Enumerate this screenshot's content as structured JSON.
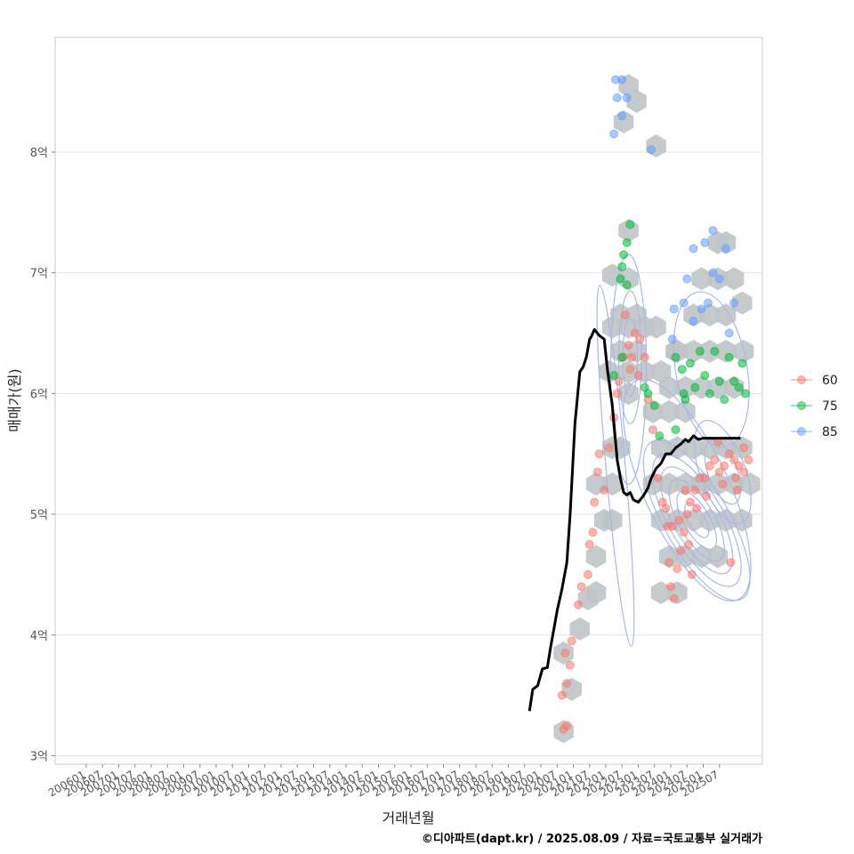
{
  "chart_data": {
    "type": "scatter",
    "xlabel": "거래년월",
    "ylabel": "매매가(원)",
    "caption": "©디아파트(dapt.kr) / 2025.08.09 / 자료=국토교통부 실거래가",
    "x_tick_labels": [
      "200601",
      "200607",
      "200701",
      "200707",
      "200801",
      "200807",
      "200901",
      "200907",
      "201001",
      "201007",
      "201101",
      "201107",
      "201201",
      "201207",
      "201301",
      "201307",
      "201401",
      "201407",
      "201501",
      "201507",
      "201601",
      "201607",
      "201701",
      "201707",
      "201801",
      "201807",
      "201901",
      "201907",
      "202001",
      "202007",
      "202101",
      "202107",
      "202201",
      "202207",
      "202301",
      "202307",
      "202401",
      "202407",
      "202501",
      "202507"
    ],
    "y_ticks": [
      3,
      4,
      5,
      6,
      7,
      8
    ],
    "y_tick_labels": [
      "3억",
      "4억",
      "5억",
      "6억",
      "7억",
      "8억"
    ],
    "ylim": [
      2.93,
      8.95
    ],
    "xlim": [
      0,
      43
    ],
    "grid": true,
    "legend_position": "right",
    "colors": {
      "60": "#F8766D",
      "75": "#00BA38",
      "85": "#619CFF",
      "hex": "#BFC4C8",
      "contour": "#A9B8E6",
      "trend": "#000000"
    },
    "legend": [
      {
        "name": "60",
        "color": "#F8766D"
      },
      {
        "name": "75",
        "color": "#00BA38"
      },
      {
        "name": "85",
        "color": "#619CFF"
      }
    ],
    "trend_line": {
      "x": [
        27.3,
        27.5,
        27.8,
        28.1,
        28.4,
        28.6,
        29.0,
        29.3,
        29.6,
        29.8,
        30.1,
        30.4,
        30.6,
        30.8,
        31.0,
        31.1,
        31.3,
        31.6,
        31.9,
        32.1,
        32.4,
        32.7,
        32.9,
        33.1,
        33.3,
        33.5,
        33.7,
        34.0,
        34.3,
        34.6,
        34.8,
        35.1,
        35.4,
        35.7,
        36.0,
        36.3,
        36.6,
        36.9,
        37.1,
        37.4,
        37.7,
        38.0,
        38.3,
        38.6,
        38.9,
        39.2,
        39.5,
        39.8,
        40.1,
        40.3
      ],
      "y": [
        3.37,
        3.55,
        3.58,
        3.72,
        3.73,
        3.9,
        4.2,
        4.38,
        4.6,
        5.0,
        5.75,
        6.18,
        6.22,
        6.3,
        6.45,
        6.47,
        6.53,
        6.48,
        6.45,
        6.2,
        5.9,
        5.45,
        5.3,
        5.18,
        5.16,
        5.18,
        5.12,
        5.1,
        5.15,
        5.22,
        5.3,
        5.38,
        5.42,
        5.5,
        5.5,
        5.55,
        5.58,
        5.62,
        5.6,
        5.65,
        5.62,
        5.63,
        5.63,
        5.63,
        5.63,
        5.63,
        5.63,
        5.63,
        5.63,
        5.63
      ]
    },
    "hexbins": [
      [
        33.4,
        8.55
      ],
      [
        33.9,
        8.42
      ],
      [
        33.1,
        8.25
      ],
      [
        35.1,
        8.05
      ],
      [
        33.4,
        7.35
      ],
      [
        32.4,
        6.98
      ],
      [
        33.4,
        6.95
      ],
      [
        32.9,
        6.65
      ],
      [
        33.9,
        6.65
      ],
      [
        32.4,
        6.55
      ],
      [
        33.4,
        6.55
      ],
      [
        34.4,
        6.55
      ],
      [
        35.1,
        6.55
      ],
      [
        32.9,
        6.35
      ],
      [
        33.9,
        6.35
      ],
      [
        32.2,
        6.18
      ],
      [
        33.4,
        6.18
      ],
      [
        34.4,
        6.18
      ],
      [
        35.4,
        6.18
      ],
      [
        36.3,
        6.35
      ],
      [
        35.9,
        6.05
      ],
      [
        36.9,
        6.05
      ],
      [
        37.9,
        6.05
      ],
      [
        38.9,
        6.05
      ],
      [
        39.9,
        6.05
      ],
      [
        40.5,
        6.35
      ],
      [
        39.4,
        6.35
      ],
      [
        38.4,
        6.35
      ],
      [
        37.4,
        6.35
      ],
      [
        36.4,
        6.35
      ],
      [
        37.4,
        6.65
      ],
      [
        38.4,
        6.65
      ],
      [
        39.4,
        6.65
      ],
      [
        38.9,
        6.95
      ],
      [
        37.9,
        6.95
      ],
      [
        38.9,
        7.25
      ],
      [
        39.4,
        7.25
      ],
      [
        40.4,
        6.75
      ],
      [
        39.9,
        6.95
      ],
      [
        33.4,
        6.0
      ],
      [
        32.4,
        5.55
      ],
      [
        32.9,
        5.55
      ],
      [
        32.4,
        5.25
      ],
      [
        31.4,
        5.25
      ],
      [
        31.9,
        4.95
      ],
      [
        31.4,
        4.65
      ],
      [
        32.4,
        4.95
      ],
      [
        31.4,
        4.35
      ],
      [
        30.9,
        4.3
      ],
      [
        30.4,
        4.05
      ],
      [
        29.4,
        3.85
      ],
      [
        29.9,
        3.55
      ],
      [
        29.4,
        3.2
      ],
      [
        34.9,
        5.25
      ],
      [
        35.4,
        5.55
      ],
      [
        35.9,
        5.25
      ],
      [
        36.4,
        5.55
      ],
      [
        36.9,
        5.25
      ],
      [
        37.4,
        5.55
      ],
      [
        37.9,
        5.25
      ],
      [
        38.4,
        5.55
      ],
      [
        38.9,
        5.25
      ],
      [
        39.4,
        5.55
      ],
      [
        39.9,
        5.25
      ],
      [
        40.4,
        5.55
      ],
      [
        40.9,
        5.25
      ],
      [
        35.4,
        4.95
      ],
      [
        36.4,
        4.95
      ],
      [
        37.4,
        4.95
      ],
      [
        38.4,
        4.95
      ],
      [
        39.4,
        4.95
      ],
      [
        40.4,
        4.95
      ],
      [
        35.9,
        4.65
      ],
      [
        36.9,
        4.65
      ],
      [
        37.9,
        4.65
      ],
      [
        38.9,
        4.65
      ],
      [
        35.4,
        4.35
      ],
      [
        36.4,
        4.35
      ],
      [
        34.9,
        5.85
      ],
      [
        35.9,
        5.85
      ],
      [
        36.9,
        5.85
      ]
    ],
    "series": [
      {
        "name": "60",
        "points": [
          [
            29.4,
            3.22
          ],
          [
            29.6,
            3.25
          ],
          [
            29.3,
            3.5
          ],
          [
            29.6,
            3.6
          ],
          [
            29.8,
            3.75
          ],
          [
            29.5,
            3.85
          ],
          [
            29.9,
            3.95
          ],
          [
            30.3,
            4.25
          ],
          [
            30.5,
            4.4
          ],
          [
            30.9,
            4.5
          ],
          [
            31.0,
            4.75
          ],
          [
            31.2,
            4.85
          ],
          [
            31.3,
            5.1
          ],
          [
            31.5,
            5.35
          ],
          [
            31.9,
            5.2
          ],
          [
            31.6,
            5.5
          ],
          [
            32.2,
            5.55
          ],
          [
            32.5,
            5.8
          ],
          [
            32.8,
            6.1
          ],
          [
            33.1,
            6.3
          ],
          [
            33.4,
            6.4
          ],
          [
            33.6,
            6.3
          ],
          [
            33.8,
            6.5
          ],
          [
            34.1,
            6.45
          ],
          [
            34.4,
            6.3
          ],
          [
            33.2,
            6.65
          ],
          [
            32.7,
            6.0
          ],
          [
            34.6,
            5.95
          ],
          [
            34.9,
            5.7
          ],
          [
            35.2,
            5.3
          ],
          [
            35.5,
            5.1
          ],
          [
            35.8,
            4.9
          ],
          [
            35.9,
            4.6
          ],
          [
            36.0,
            4.4
          ],
          [
            36.2,
            4.3
          ],
          [
            36.4,
            4.55
          ],
          [
            36.6,
            4.7
          ],
          [
            36.8,
            4.85
          ],
          [
            37.0,
            5.0
          ],
          [
            37.2,
            5.1
          ],
          [
            37.5,
            5.2
          ],
          [
            37.8,
            5.3
          ],
          [
            38.1,
            5.3
          ],
          [
            38.4,
            5.4
          ],
          [
            38.7,
            5.45
          ],
          [
            39.0,
            5.35
          ],
          [
            39.3,
            5.4
          ],
          [
            39.6,
            5.5
          ],
          [
            39.9,
            5.45
          ],
          [
            40.2,
            5.4
          ],
          [
            40.5,
            5.35
          ],
          [
            40.8,
            5.45
          ],
          [
            36.5,
            4.95
          ],
          [
            37.1,
            4.75
          ],
          [
            37.6,
            5.05
          ],
          [
            38.2,
            5.15
          ],
          [
            39.2,
            5.25
          ],
          [
            40.0,
            5.3
          ],
          [
            40.5,
            5.55
          ],
          [
            36.9,
            5.2
          ],
          [
            37.3,
            4.5
          ],
          [
            36.1,
            4.9
          ],
          [
            38.9,
            5.6
          ],
          [
            39.7,
            4.6
          ],
          [
            35.7,
            5.05
          ],
          [
            40.1,
            5.2
          ],
          [
            33.5,
            6.2
          ],
          [
            34.0,
            6.15
          ]
        ]
      },
      {
        "name": "75",
        "points": [
          [
            32.5,
            6.15
          ],
          [
            33.0,
            6.3
          ],
          [
            33.3,
            6.9
          ],
          [
            33.0,
            7.05
          ],
          [
            33.3,
            7.25
          ],
          [
            33.5,
            7.4
          ],
          [
            33.1,
            7.15
          ],
          [
            32.9,
            6.95
          ],
          [
            34.4,
            6.05
          ],
          [
            35.0,
            5.9
          ],
          [
            35.3,
            5.65
          ],
          [
            36.3,
            6.3
          ],
          [
            36.7,
            6.2
          ],
          [
            36.8,
            6.0
          ],
          [
            37.2,
            6.25
          ],
          [
            37.5,
            6.05
          ],
          [
            37.8,
            6.35
          ],
          [
            38.1,
            6.15
          ],
          [
            38.4,
            6.0
          ],
          [
            38.7,
            6.35
          ],
          [
            39.0,
            6.1
          ],
          [
            39.3,
            5.95
          ],
          [
            39.6,
            6.3
          ],
          [
            39.9,
            6.1
          ],
          [
            40.2,
            6.05
          ],
          [
            40.4,
            6.25
          ],
          [
            40.6,
            6.0
          ],
          [
            36.9,
            5.95
          ],
          [
            36.3,
            5.7
          ],
          [
            34.6,
            6.0
          ]
        ]
      },
      {
        "name": "85",
        "points": [
          [
            32.6,
            8.6
          ],
          [
            33.0,
            8.6
          ],
          [
            32.7,
            8.45
          ],
          [
            33.3,
            8.45
          ],
          [
            33.0,
            8.3
          ],
          [
            32.5,
            8.15
          ],
          [
            34.8,
            8.02
          ],
          [
            36.2,
            6.7
          ],
          [
            36.8,
            6.75
          ],
          [
            37.4,
            6.6
          ],
          [
            37.9,
            6.7
          ],
          [
            38.3,
            6.75
          ],
          [
            38.6,
            7.0
          ],
          [
            39.0,
            6.95
          ],
          [
            39.4,
            7.2
          ],
          [
            39.9,
            6.75
          ],
          [
            38.1,
            7.25
          ],
          [
            38.6,
            7.35
          ],
          [
            37.4,
            7.2
          ],
          [
            37.0,
            6.95
          ],
          [
            39.6,
            6.5
          ],
          [
            36.1,
            6.45
          ]
        ]
      }
    ],
    "contours": [
      {
        "cx": 37.6,
        "cy": 4.95,
        "rx": 2.0,
        "ry": 0.75,
        "rot": -30
      },
      {
        "cx": 37.6,
        "cy": 4.95,
        "rx": 1.7,
        "ry": 0.62,
        "rot": -30
      },
      {
        "cx": 37.6,
        "cy": 4.95,
        "rx": 1.4,
        "ry": 0.5,
        "rot": -30
      },
      {
        "cx": 37.6,
        "cy": 4.95,
        "rx": 1.1,
        "ry": 0.38,
        "rot": -30
      },
      {
        "cx": 37.6,
        "cy": 4.95,
        "rx": 0.8,
        "ry": 0.27,
        "rot": -30
      },
      {
        "cx": 37.6,
        "cy": 4.95,
        "rx": 0.5,
        "ry": 0.16,
        "rot": -30
      },
      {
        "cx": 39.2,
        "cy": 5.35,
        "rx": 1.4,
        "ry": 0.45,
        "rot": -20
      },
      {
        "cx": 39.2,
        "cy": 5.35,
        "rx": 0.9,
        "ry": 0.28,
        "rot": -20
      },
      {
        "cx": 33.5,
        "cy": 6.3,
        "rx": 0.7,
        "ry": 0.55,
        "rot": 0
      },
      {
        "cx": 33.5,
        "cy": 6.3,
        "rx": 0.45,
        "ry": 0.32,
        "rot": 0
      },
      {
        "cx": 33.4,
        "cy": 6.2,
        "rx": 1.1,
        "ry": 0.95,
        "rot": 0
      },
      {
        "cx": 32.6,
        "cy": 5.4,
        "rx": 0.6,
        "ry": 1.5,
        "rot": -5
      },
      {
        "cx": 38.5,
        "cy": 6.2,
        "rx": 2.2,
        "ry": 0.65,
        "rot": -10
      },
      {
        "cx": 37.0,
        "cy": 5.2,
        "rx": 2.6,
        "ry": 1.0,
        "rot": -25
      }
    ]
  }
}
